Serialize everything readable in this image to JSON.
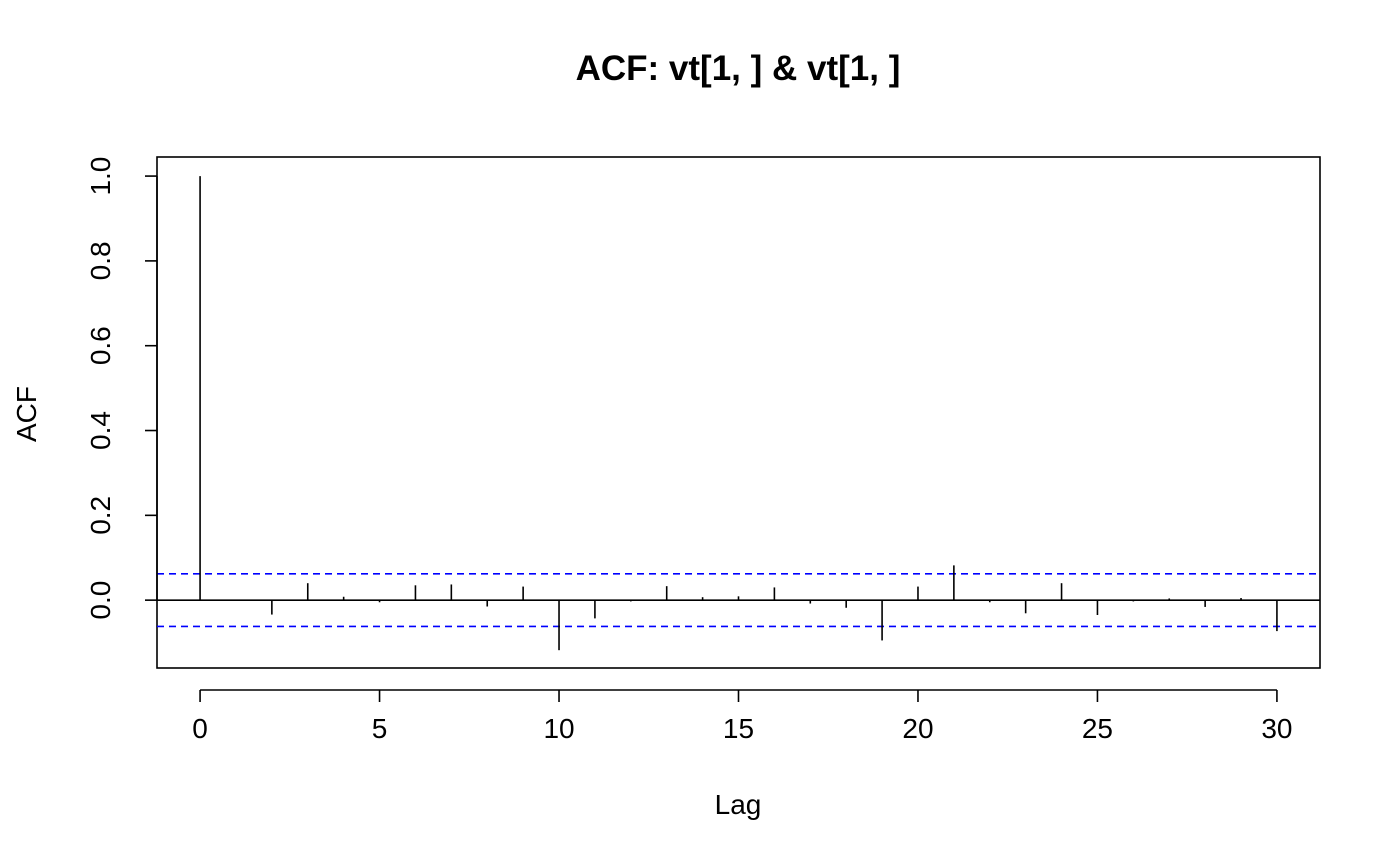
{
  "chart_data": {
    "type": "bar",
    "title": "ACF: vt[1, ] & vt[1, ]",
    "xlabel": "Lag",
    "ylabel": "ACF",
    "xlim": [
      -1.2,
      31.2
    ],
    "ylim": [
      -0.16,
      1.045
    ],
    "x_ticks": [
      0,
      5,
      10,
      15,
      20,
      25,
      30
    ],
    "x_tick_labels": [
      "0",
      "5",
      "10",
      "15",
      "20",
      "25",
      "30"
    ],
    "y_ticks": [
      0.0,
      0.2,
      0.4,
      0.6,
      0.8,
      1.0
    ],
    "y_tick_labels": [
      "0.0",
      "0.2",
      "0.4",
      "0.6",
      "0.8",
      "1.0"
    ],
    "grid": false,
    "lags": [
      0,
      1,
      2,
      3,
      4,
      5,
      6,
      7,
      8,
      9,
      10,
      11,
      12,
      13,
      14,
      15,
      16,
      17,
      18,
      19,
      20,
      21,
      22,
      23,
      24,
      25,
      26,
      27,
      28,
      29,
      30
    ],
    "acf": [
      1.0,
      -0.002,
      -0.034,
      0.04,
      0.008,
      -0.005,
      0.035,
      0.037,
      -0.015,
      0.032,
      -0.118,
      -0.043,
      -0.003,
      0.033,
      0.007,
      0.009,
      0.03,
      -0.008,
      -0.018,
      -0.095,
      0.032,
      0.082,
      -0.005,
      -0.031,
      0.04,
      -0.035,
      -0.003,
      0.004,
      -0.016,
      0.005,
      -0.073
    ],
    "confidence_limits": [
      0.062,
      -0.062
    ],
    "colors": {
      "bars": "#000000",
      "confidence": "#0000ff",
      "frame": "#000000"
    }
  }
}
